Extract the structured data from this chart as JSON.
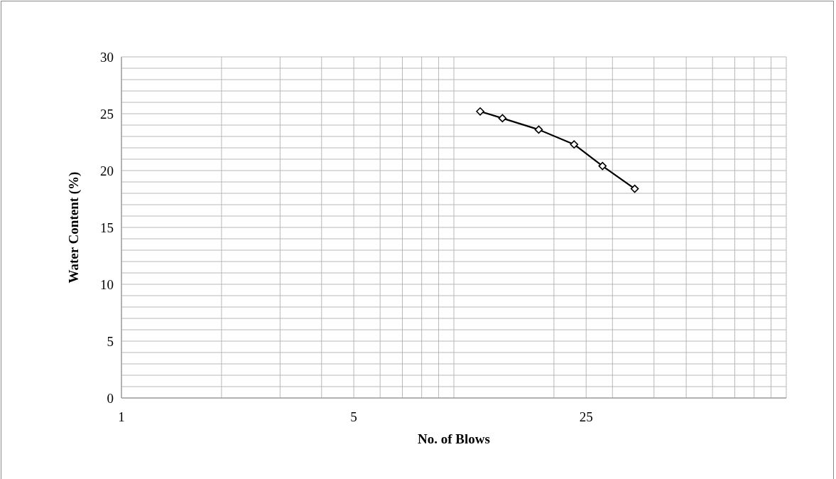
{
  "chart_data": {
    "type": "line",
    "xlabel": "No. of Blows",
    "ylabel": "Water Content (%)",
    "log": "x",
    "x": [
      12,
      14,
      18,
      23,
      28,
      35
    ],
    "series": [
      {
        "color": "#000000",
        "values": [
          25.2,
          24.6,
          23.6,
          22.3,
          20.4,
          18.4
        ]
      }
    ],
    "xlim": [
      1,
      100
    ],
    "xticks": [
      1,
      {
        "value": 2,
        "label": null
      },
      {
        "value": 3,
        "label": null
      },
      {
        "value": 4,
        "label": null
      },
      5,
      {
        "value": 6,
        "label": null
      },
      {
        "value": 7,
        "label": null
      },
      {
        "value": 8,
        "label": null
      },
      {
        "value": 9,
        "label": null
      },
      {
        "value": 10,
        "label": null
      },
      {
        "value": 20,
        "label": null
      },
      25,
      {
        "value": 30,
        "label": null
      },
      {
        "value": 40,
        "label": null
      },
      {
        "value": 50,
        "label": null
      },
      {
        "value": 60,
        "label": null
      },
      {
        "value": 70,
        "label": null
      },
      {
        "value": 80,
        "label": null
      },
      {
        "value": 90,
        "label": null
      },
      {
        "value": 100,
        "label": null
      }
    ],
    "ylim": [
      0,
      30
    ],
    "yticks": [
      0,
      {
        "value": 1,
        "label": null
      },
      {
        "value": 2,
        "label": null
      },
      {
        "value": 3,
        "label": null
      },
      {
        "value": 4,
        "label": null
      },
      5,
      {
        "value": 6,
        "label": null
      },
      {
        "value": 7,
        "label": null
      },
      {
        "value": 8,
        "label": null
      },
      {
        "value": 9,
        "label": null
      },
      10,
      {
        "value": 11,
        "label": null
      },
      {
        "value": 12,
        "label": null
      },
      {
        "value": 13,
        "label": null
      },
      {
        "value": 14,
        "label": null
      },
      15,
      {
        "value": 16,
        "label": null
      },
      {
        "value": 17,
        "label": null
      },
      {
        "value": 18,
        "label": null
      },
      {
        "value": 19,
        "label": null
      },
      20,
      {
        "value": 21,
        "label": null
      },
      {
        "value": 22,
        "label": null
      },
      {
        "value": 23,
        "label": null
      },
      {
        "value": 24,
        "label": null
      },
      25,
      {
        "value": 26,
        "label": null
      },
      {
        "value": 27,
        "label": null
      },
      {
        "value": 28,
        "label": null
      },
      {
        "value": 29,
        "label": null
      },
      30
    ],
    "grid": true,
    "marker": "diamond",
    "line_style": "solid",
    "legend": false
  }
}
